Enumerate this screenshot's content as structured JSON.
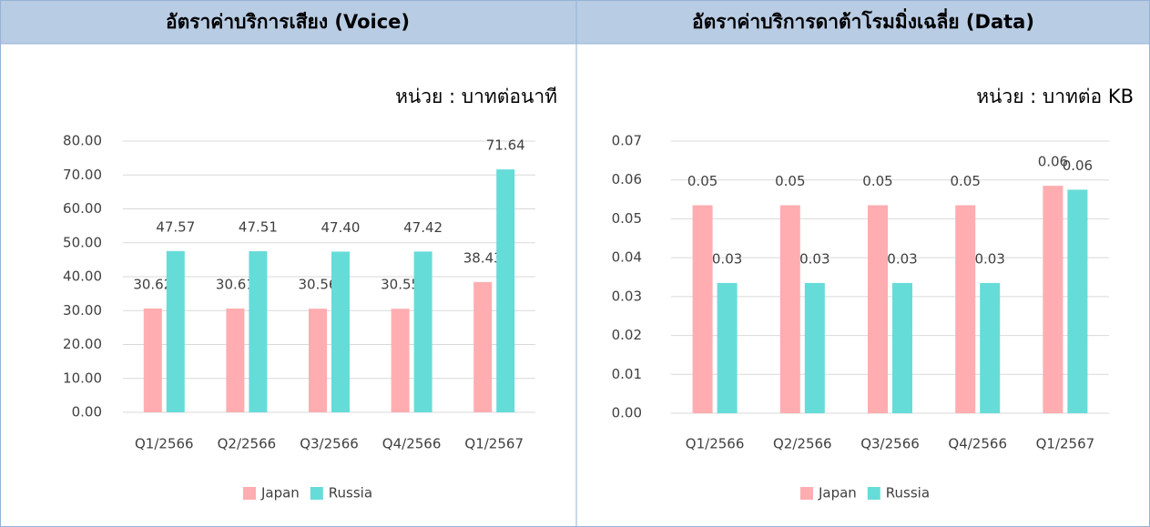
{
  "chart_data": [
    {
      "type": "bar",
      "title": "อัตราค่าบริการเสียง (Voice)",
      "subtitle": "หน่วย : บาทต่อนาที",
      "categories": [
        "Q1/2566",
        "Q2/2566",
        "Q3/2566",
        "Q4/2566",
        "Q1/2567"
      ],
      "series": [
        {
          "name": "Japan",
          "color": "#ffadb0",
          "values": [
            30.62,
            30.61,
            30.56,
            30.55,
            38.43
          ],
          "value_labels": [
            "30.62",
            "30.61",
            "30.56",
            "30.55",
            "38.43"
          ]
        },
        {
          "name": "Russia",
          "color": "#66dcd9",
          "values": [
            47.57,
            47.51,
            47.4,
            47.42,
            71.64
          ],
          "value_labels": [
            "47.57",
            "47.51",
            "47.40",
            "47.42",
            "71.64"
          ]
        }
      ],
      "ylim": [
        0,
        80
      ],
      "yticks": [
        {
          "value": 0,
          "label": "0.00"
        },
        {
          "value": 10,
          "label": "10.00"
        },
        {
          "value": 20,
          "label": "20.00"
        },
        {
          "value": 30,
          "label": "30.00"
        },
        {
          "value": 40,
          "label": "40.00"
        },
        {
          "value": 50,
          "label": "50.00"
        },
        {
          "value": 60,
          "label": "60.00"
        },
        {
          "value": 70,
          "label": "70.00"
        },
        {
          "value": 80,
          "label": "80.00"
        }
      ],
      "grid": true,
      "legend": "bottom"
    },
    {
      "type": "bar",
      "title": "อัตราค่าบริการดาต้าโรมมิ่งเฉลี่ย (Data)",
      "subtitle": "หน่วย : บาทต่อ KB",
      "categories": [
        "Q1/2566",
        "Q2/2566",
        "Q3/2566",
        "Q4/2566",
        "Q1/2567"
      ],
      "series": [
        {
          "name": "Japan",
          "color": "#ffadb0",
          "values": [
            0.0535,
            0.0535,
            0.0535,
            0.0535,
            0.0585
          ],
          "value_labels": [
            "0.05",
            "0.05",
            "0.05",
            "0.05",
            "0.06"
          ]
        },
        {
          "name": "Russia",
          "color": "#66dcd9",
          "values": [
            0.0335,
            0.0335,
            0.0335,
            0.0335,
            0.0575
          ],
          "value_labels": [
            "0.03",
            "0.03",
            "0.03",
            "0.03",
            "0.06"
          ]
        }
      ],
      "ylim": [
        0,
        0.07
      ],
      "yticks": [
        {
          "value": 0,
          "label": "0.00"
        },
        0.01,
        0.02,
        0.03,
        0.04,
        0.05,
        0.06,
        0.07
      ],
      "grid": true,
      "legend": "bottom"
    }
  ]
}
